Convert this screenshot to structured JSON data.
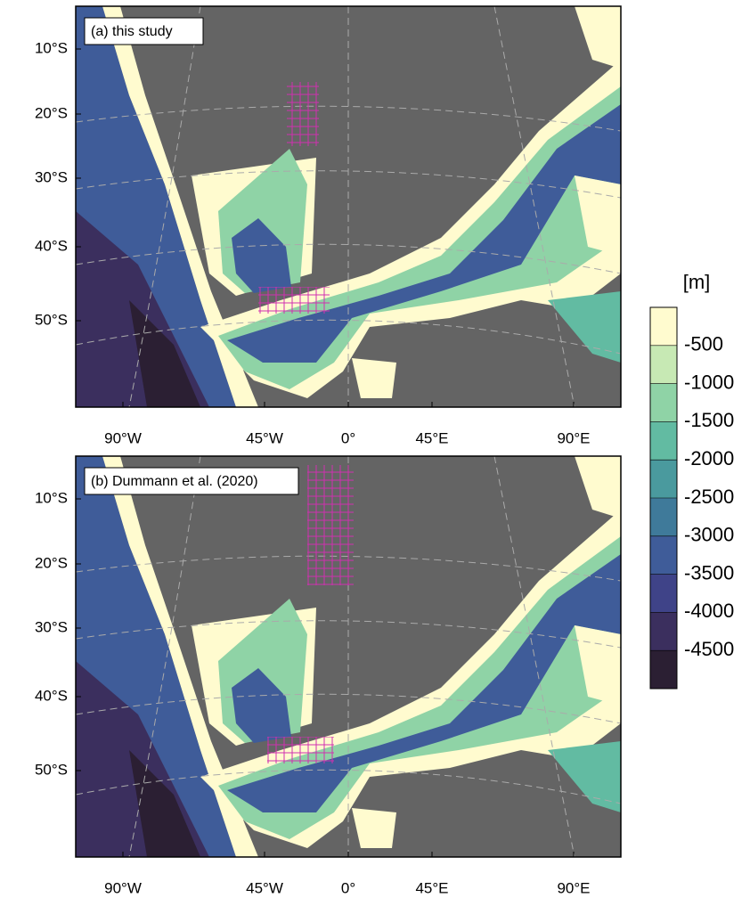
{
  "colorbar": {
    "unit": "[m]",
    "levels": [
      -500,
      -1000,
      -1500,
      -2000,
      -2500,
      -3000,
      -3500,
      -4000,
      -4500
    ],
    "colors": [
      "#fffbcf",
      "#c7e9b4",
      "#8fd3a6",
      "#62bba2",
      "#4a9a9e",
      "#3f7a9a",
      "#3f5c99",
      "#3f4388",
      "#3b2f5e",
      "#2b1f33"
    ]
  },
  "panels": [
    {
      "label": "(a) this study",
      "xticks": [
        "90°W",
        "45°W",
        "0°",
        "45°E",
        "90°E"
      ],
      "yticks": [
        "10°S",
        "20°S",
        "30°S",
        "40°S",
        "50°S"
      ]
    },
    {
      "label": "(b) Dummann et al. (2020)",
      "xticks": [
        "90°W",
        "45°W",
        "0°",
        "45°E",
        "90°E"
      ],
      "yticks": [
        "10°S",
        "20°S",
        "30°S",
        "40°S",
        "50°S"
      ]
    }
  ]
}
